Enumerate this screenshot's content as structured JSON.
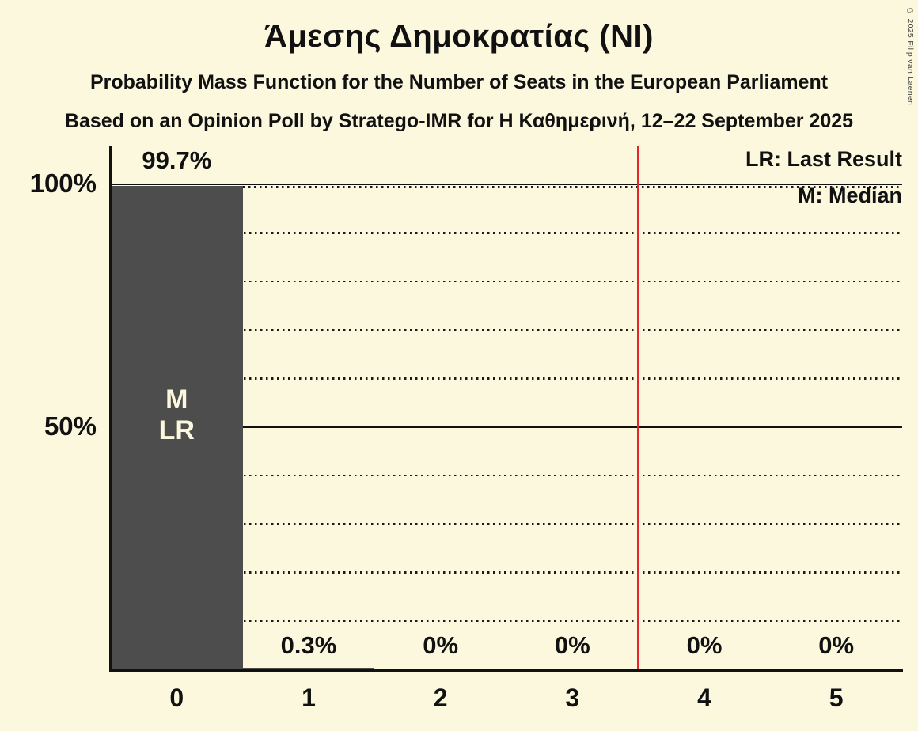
{
  "page": {
    "copyright": "© 2025 Filip van Laenen",
    "background_color": "#FCF8DE"
  },
  "header": {
    "title": "Άμεσης Δημοκρατίας (ΝΙ)",
    "subtitle": "Probability Mass Function for the Number of Seats in the European Parliament",
    "source_line": "Based on an Opinion Poll by Stratego-IMR for Η Καθημερινή, 12–22 September 2025"
  },
  "legend": {
    "last_result": "LR: Last Result",
    "median": "M: Median"
  },
  "chart_data": {
    "type": "bar",
    "title": "Άμεσης Δημοκρατίας (ΝΙ)",
    "subtitle": "Probability Mass Function for the Number of Seats in the European Parliament",
    "source": "Based on an Opinion Poll by Stratego-IMR for Η Καθημερινή, 12–22 September 2025",
    "xlabel": "",
    "ylabel": "",
    "categories": [
      "0",
      "1",
      "2",
      "3",
      "4",
      "5"
    ],
    "values": [
      99.7,
      0.3,
      0,
      0,
      0,
      0
    ],
    "value_labels": [
      "99.7%",
      "0.3%",
      "0%",
      "0%",
      "0%",
      "0%"
    ],
    "ylim": [
      0,
      100
    ],
    "ytick_values": [
      100,
      50
    ],
    "ytick_labels": [
      "100%",
      "50%"
    ],
    "grid": {
      "solid_at_percent": [
        100,
        50
      ],
      "dotted_at_percent": [
        90,
        80,
        70,
        60,
        40,
        30,
        20,
        10
      ],
      "bar_top_dotted_extension_percent": 99.7
    },
    "median_category": "0",
    "last_result_category": "0",
    "bar_annotations": [
      {
        "category": "0",
        "lines": [
          "M",
          "LR"
        ]
      }
    ],
    "threshold_line_x": 3.5,
    "legend_position": "top-right",
    "colors": {
      "background": "#FCF8DE",
      "bar": "#4D4D4D",
      "bar_annotation_text": "#FCF8DE",
      "threshold_line": "#E8242B",
      "text": "#111111",
      "gridline": "#1A1A1A"
    }
  }
}
